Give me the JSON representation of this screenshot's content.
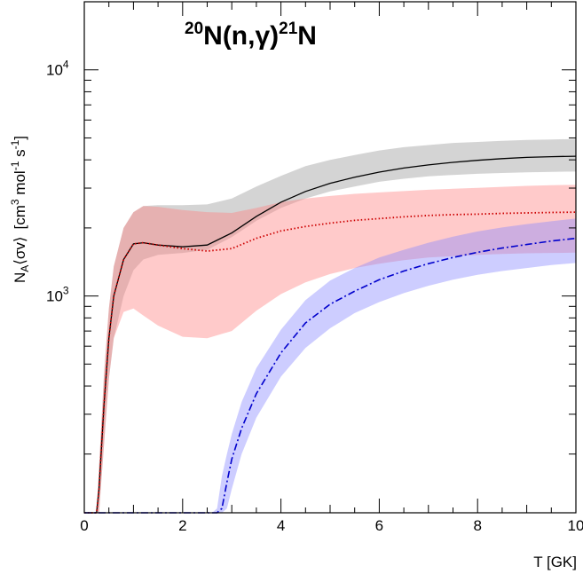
{
  "chart_data": {
    "type": "area",
    "title": {
      "a_mass": "20",
      "a_symbol": "N",
      "reaction": "(n,γ)",
      "b_mass": "21",
      "b_symbol": "N"
    },
    "xlabel": "T [GK]",
    "ylabel": "NA⟨σv⟩ [cm3 mol-1 s-1]",
    "ylabel_parts": {
      "n": "N",
      "n_sub": "A",
      "sigv": "⟨σv⟩",
      "unit_a": "[cm",
      "unit_a_sup": "3",
      "unit_b": " mol",
      "unit_b_sup": "-1",
      "unit_c": " s",
      "unit_c_sup": "-1",
      "unit_close": "]"
    },
    "xlim": [
      0,
      10
    ],
    "ylim": [
      110,
      20000
    ],
    "yscale": "log",
    "grid": false,
    "x_ticks": [
      {
        "value": 0,
        "label": "0"
      },
      {
        "value": 2,
        "label": "2"
      },
      {
        "value": 4,
        "label": "4"
      },
      {
        "value": 6,
        "label": "6"
      },
      {
        "value": 8,
        "label": "8"
      },
      {
        "value": 10,
        "label": "10"
      }
    ],
    "y_major_ticks": [
      {
        "value": 1000,
        "base": "10",
        "exp": "3"
      },
      {
        "value": 10000,
        "base": "10",
        "exp": "4"
      }
    ],
    "x": [
      0,
      0.25,
      0.3,
      0.4,
      0.5,
      0.6,
      0.8,
      1.0,
      1.2,
      1.5,
      2.0,
      2.5,
      3.0,
      3.5,
      4.0,
      4.5,
      5.0,
      5.5,
      6.0,
      6.5,
      7.0,
      7.5,
      8.0,
      8.5,
      9.0,
      9.5,
      10.0
    ],
    "series": [
      {
        "style": "solid",
        "color": "#000000",
        "band_color": "#999999",
        "values": [
          110,
          110,
          140,
          330,
          650,
          1000,
          1450,
          1700,
          1720,
          1680,
          1650,
          1680,
          1900,
          2250,
          2600,
          2900,
          3150,
          3350,
          3530,
          3680,
          3800,
          3900,
          3980,
          4050,
          4100,
          4130,
          4150
        ],
        "lower": [
          110,
          110,
          110,
          220,
          430,
          650,
          1000,
          1300,
          1450,
          1520,
          1550,
          1600,
          1820,
          2150,
          2450,
          2700,
          2900,
          3050,
          3200,
          3300,
          3380,
          3430,
          3470,
          3500,
          3520,
          3540,
          3550
        ],
        "upper": [
          110,
          110,
          175,
          450,
          880,
          1350,
          2000,
          2350,
          2500,
          2520,
          2520,
          2540,
          2700,
          3050,
          3400,
          3750,
          4000,
          4200,
          4400,
          4550,
          4650,
          4750,
          4800,
          4850,
          4900,
          4920,
          4950
        ]
      },
      {
        "style": "dotted",
        "color": "#cc0000",
        "band_color": "#ff8080",
        "values": [
          110,
          110,
          140,
          330,
          650,
          1000,
          1450,
          1700,
          1720,
          1680,
          1620,
          1580,
          1620,
          1800,
          1940,
          2030,
          2100,
          2160,
          2200,
          2240,
          2270,
          2290,
          2300,
          2320,
          2330,
          2340,
          2350
        ],
        "lower": [
          110,
          110,
          110,
          220,
          430,
          650,
          850,
          880,
          820,
          740,
          660,
          650,
          700,
          860,
          1020,
          1150,
          1250,
          1330,
          1390,
          1440,
          1480,
          1500,
          1520,
          1535,
          1545,
          1550,
          1555
        ],
        "upper": [
          110,
          110,
          175,
          450,
          880,
          1350,
          2000,
          2350,
          2500,
          2480,
          2400,
          2350,
          2330,
          2450,
          2600,
          2700,
          2770,
          2830,
          2870,
          2910,
          2950,
          2980,
          3010,
          3040,
          3070,
          3090,
          3100
        ]
      },
      {
        "style": "dashdot",
        "color": "#0000cc",
        "band_color": "#8888ff",
        "x": [
          0,
          2.4,
          2.5,
          2.6,
          2.7,
          2.8,
          2.9,
          3.0,
          3.2,
          3.5,
          4.0,
          4.5,
          5.0,
          5.5,
          6.0,
          6.5,
          7.0,
          7.5,
          8.0,
          8.5,
          9.0,
          9.5,
          10.0
        ],
        "values": [
          110,
          110,
          110,
          110,
          110,
          115,
          150,
          190,
          260,
          370,
          560,
          760,
          920,
          1050,
          1180,
          1290,
          1390,
          1480,
          1560,
          1630,
          1690,
          1750,
          1800
        ],
        "lower": [
          110,
          110,
          110,
          110,
          110,
          110,
          115,
          140,
          200,
          290,
          440,
          590,
          720,
          840,
          940,
          1030,
          1110,
          1180,
          1240,
          1290,
          1330,
          1370,
          1400
        ],
        "upper": [
          110,
          110,
          110,
          110,
          115,
          160,
          200,
          245,
          340,
          480,
          710,
          960,
          1170,
          1330,
          1480,
          1600,
          1720,
          1830,
          1930,
          2010,
          2080,
          2140,
          2200
        ]
      }
    ]
  }
}
